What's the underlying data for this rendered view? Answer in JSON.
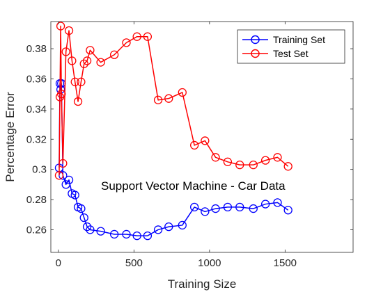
{
  "chart_data": {
    "type": "line",
    "title": "",
    "xlabel": "Training Size",
    "ylabel": "Percentage Error",
    "xlim": [
      -50,
      1950
    ],
    "ylim": [
      0.245,
      0.398
    ],
    "xticks": [
      0,
      500,
      1000,
      1500
    ],
    "yticks": [
      0.26,
      0.28,
      0.3,
      0.32,
      0.34,
      0.36,
      0.38
    ],
    "ytick_labels": [
      "0.26",
      "0.28",
      "0.3",
      "0.32",
      "0.34",
      "0.36",
      "0.38"
    ],
    "grid": false,
    "legend_position": "top-right",
    "annotation": "Support Vector Machine - Car Data",
    "series": [
      {
        "name": "Training Set",
        "color": "#0000ff",
        "marker": "circle",
        "x": [
          5,
          10,
          15,
          20,
          30,
          50,
          70,
          90,
          110,
          130,
          150,
          170,
          190,
          210,
          280,
          370,
          450,
          520,
          590,
          660,
          730,
          820,
          900,
          970,
          1040,
          1120,
          1200,
          1290,
          1370,
          1450,
          1520
        ],
        "y": [
          0.301,
          0.357,
          0.353,
          0.357,
          0.296,
          0.29,
          0.293,
          0.284,
          0.283,
          0.275,
          0.274,
          0.268,
          0.262,
          0.26,
          0.259,
          0.257,
          0.257,
          0.256,
          0.256,
          0.26,
          0.262,
          0.263,
          0.275,
          0.272,
          0.274,
          0.275,
          0.275,
          0.274,
          0.277,
          0.278,
          0.273
        ]
      },
      {
        "name": "Test Set",
        "color": "#ff0000",
        "marker": "circle",
        "x": [
          5,
          10,
          15,
          20,
          30,
          50,
          70,
          90,
          110,
          130,
          150,
          170,
          190,
          210,
          280,
          370,
          450,
          520,
          590,
          660,
          730,
          820,
          900,
          970,
          1040,
          1120,
          1200,
          1290,
          1370,
          1450,
          1520
        ],
        "y": [
          0.296,
          0.348,
          0.395,
          0.35,
          0.304,
          0.378,
          0.392,
          0.372,
          0.358,
          0.345,
          0.358,
          0.37,
          0.372,
          0.379,
          0.371,
          0.376,
          0.384,
          0.388,
          0.388,
          0.346,
          0.347,
          0.351,
          0.316,
          0.319,
          0.308,
          0.305,
          0.303,
          0.303,
          0.306,
          0.308,
          0.302
        ]
      }
    ]
  }
}
